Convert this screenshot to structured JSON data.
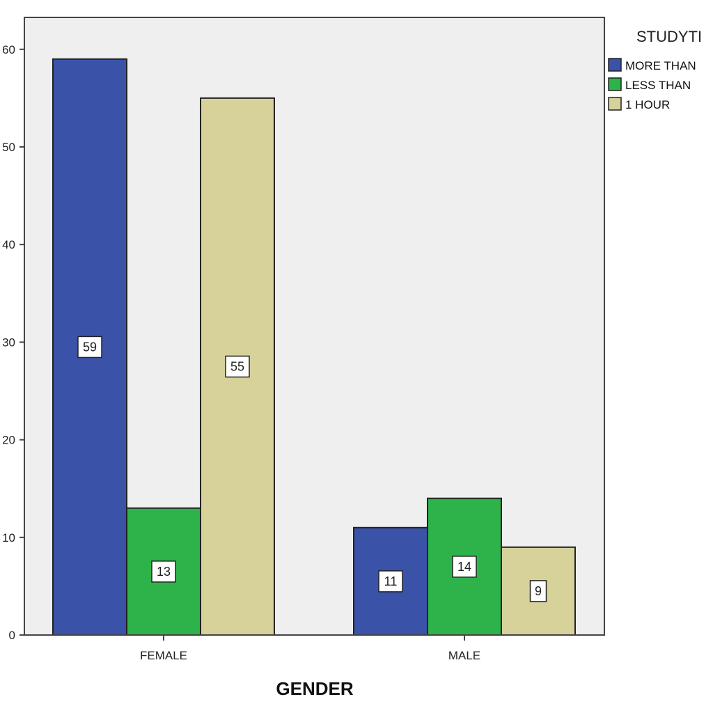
{
  "chart_data": {
    "type": "bar",
    "xlabel": "GENDER",
    "ylabel": "",
    "categories": [
      "FEMALE",
      "MALE"
    ],
    "ylim": [
      0,
      60
    ],
    "y_ticks": [
      "0",
      "10",
      "20",
      "30",
      "40",
      "50",
      "60"
    ],
    "y_tick_values": [
      0,
      10,
      20,
      30,
      40,
      50,
      60
    ],
    "legend": {
      "title": "STUDYTI",
      "placement": "top-right"
    },
    "series": [
      {
        "name": "MORE THAN",
        "color": "#3a52a8",
        "values": [
          59,
          11
        ]
      },
      {
        "name": "LESS THAN",
        "color": "#2db34a",
        "values": [
          13,
          14
        ]
      },
      {
        "name": "1 HOUR",
        "color": "#d6d29a",
        "values": [
          55,
          9
        ]
      }
    ],
    "data_labels": [
      [
        "59",
        "11"
      ],
      [
        "13",
        "14"
      ],
      [
        "55",
        "9"
      ]
    ],
    "plot_background": "#efefef",
    "grid": false
  }
}
